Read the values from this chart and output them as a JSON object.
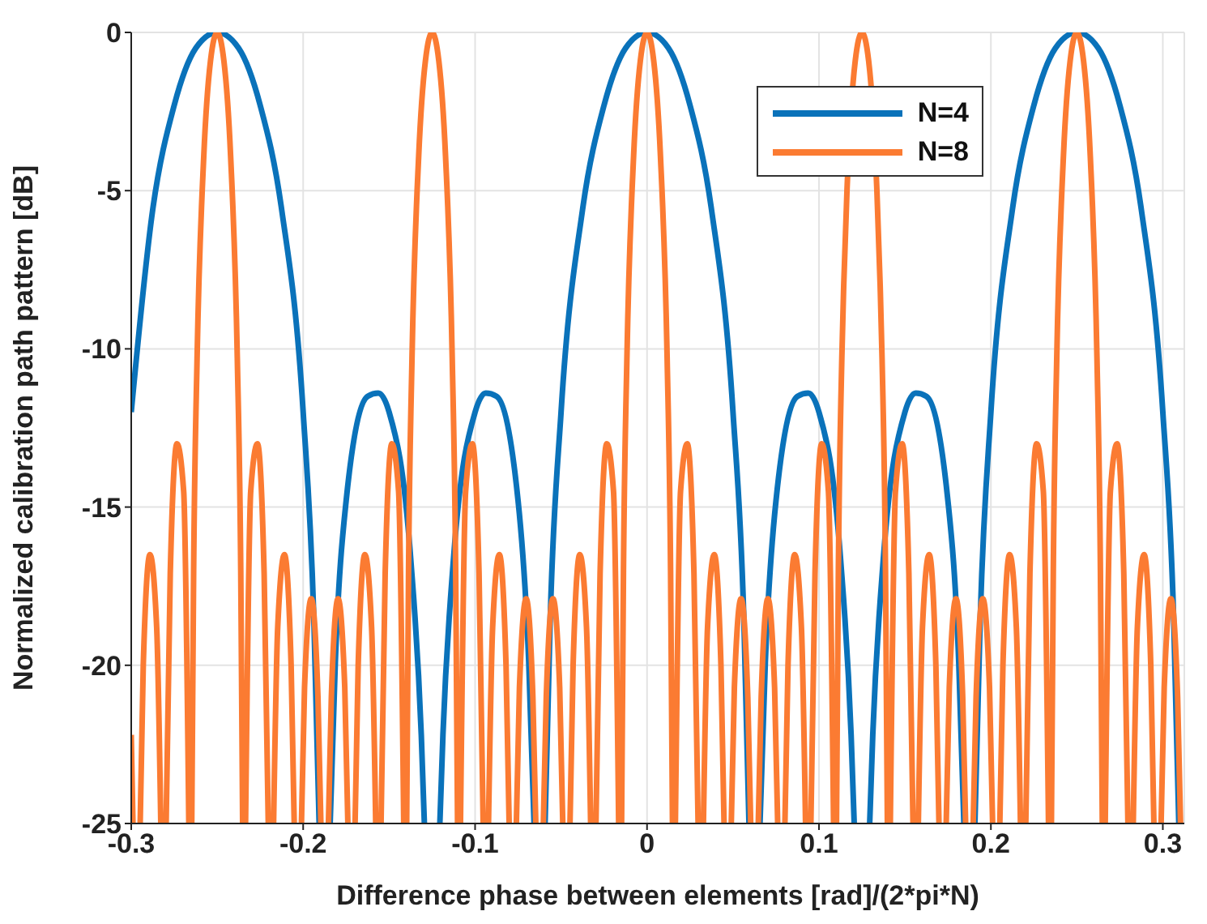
{
  "chart_data": {
    "type": "line",
    "xlabel": "Difference phase between elements [rad]/(2*pi*N)",
    "ylabel": "Normalized calibration path pattern [dB]",
    "xlim": [
      -0.3,
      0.3125
    ],
    "xticks": [
      -0.3,
      -0.2,
      -0.1,
      0,
      0.1,
      0.2,
      0.3
    ],
    "ylim": [
      -25,
      0
    ],
    "yticks": [
      -25,
      -20,
      -15,
      -10,
      -5,
      0
    ],
    "grid": true,
    "legend": "top right",
    "marker": "none",
    "line_style": "solid",
    "series": [
      {
        "name": "N=4",
        "color": "#0a72ba",
        "x": [
          -0.3,
          -0.2875,
          -0.275,
          -0.2625,
          -0.25,
          -0.2375,
          -0.225,
          -0.2125,
          -0.2,
          -0.1938,
          -0.1907,
          -0.1875,
          -0.1843,
          -0.1813,
          -0.175,
          -0.1625,
          -0.1563,
          -0.15,
          -0.1375,
          -0.1313,
          -0.1295,
          -0.125,
          -0.1205,
          -0.1187,
          -0.1125,
          -0.1,
          -0.0938,
          -0.0875,
          -0.075,
          -0.0688,
          -0.0657,
          -0.0625,
          -0.0593,
          -0.0563,
          -0.05,
          -0.0375,
          -0.025,
          -0.0125,
          0,
          0.0125,
          0.025,
          0.0375,
          0.05,
          0.0563,
          0.0593,
          0.0625,
          0.0657,
          0.0688,
          0.075,
          0.0875,
          0.0938,
          0.1,
          0.1125,
          0.1187,
          0.1205,
          0.125,
          0.1295,
          0.1313,
          0.1375,
          0.15,
          0.1563,
          0.1625,
          0.175,
          0.1813,
          0.1843,
          0.1875,
          0.1907,
          0.1938,
          0.2,
          0.2125,
          0.225,
          0.2375,
          0.25,
          0.2625,
          0.275,
          0.2875,
          0.3,
          0.3063,
          0.3093
        ],
        "values": [
          -12,
          -5.6,
          -2.3,
          -0.5,
          0,
          -0.5,
          -2.3,
          -5.6,
          -12,
          -18.5,
          -25,
          null,
          -25,
          -19.9,
          -14.8,
          -11.5,
          -11.4,
          -12,
          -16.6,
          -22.2,
          -25,
          null,
          -25,
          -22.2,
          -16.6,
          -12,
          -11.4,
          -11.5,
          -14.8,
          -19.9,
          -25,
          null,
          -25,
          -18.5,
          -12,
          -5.6,
          -2.3,
          -0.5,
          0,
          -0.5,
          -2.3,
          -5.6,
          -12,
          -18.5,
          -25,
          null,
          -25,
          -19.9,
          -14.8,
          -11.5,
          -11.4,
          -12,
          -16.6,
          -22.2,
          -25,
          null,
          -25,
          -22.2,
          -16.6,
          -12,
          -11.4,
          -11.5,
          -14.8,
          -19.9,
          -25,
          null,
          -25,
          -18.5,
          -12,
          -5.6,
          -2.3,
          -0.5,
          0,
          -0.5,
          -2.3,
          -5.6,
          -12,
          -18.5,
          -25
        ]
      },
      {
        "name": "N=8",
        "color": "#fb7b32",
        "x": [
          -0.3,
          -0.299,
          -0.2969,
          -0.2948,
          -0.293,
          -0.2891,
          -0.2852,
          -0.2828,
          -0.2812,
          -0.2797,
          -0.2773,
          -0.2734,
          -0.2695,
          -0.2665,
          -0.2656,
          -0.2648,
          -0.2637,
          -0.2617,
          -0.2578,
          -0.2539,
          -0.25,
          -0.2461,
          -0.2422,
          -0.2383,
          -0.2363,
          -0.2352,
          -0.2344,
          -0.2335,
          -0.2305,
          -0.2266,
          -0.2227,
          -0.2203,
          -0.2188,
          -0.2172,
          -0.2148,
          -0.2109,
          -0.207,
          -0.2052,
          -0.2031,
          -0.201,
          -0.1992,
          -0.1953,
          -0.1914,
          -0.1897,
          -0.1875,
          -0.1853,
          -0.1836,
          -0.1797,
          -0.1758,
          -0.174,
          -0.1719,
          -0.1698,
          -0.168,
          -0.1641,
          -0.1602,
          -0.1578,
          -0.1562,
          -0.1547,
          -0.1523,
          -0.1484,
          -0.1445,
          -0.1415,
          -0.1406,
          -0.1398,
          -0.1387,
          -0.1367,
          -0.1328,
          -0.1289,
          -0.125,
          -0.1211,
          -0.1172,
          -0.1133,
          -0.1113,
          -0.1102,
          -0.1094,
          -0.1085,
          -0.1055,
          -0.1016,
          -0.0977,
          -0.0953,
          -0.0938,
          -0.0922,
          -0.0898,
          -0.0859,
          -0.082,
          -0.0802,
          -0.0781,
          -0.076,
          -0.0742,
          -0.0703,
          -0.0664,
          -0.0647,
          -0.0625,
          -0.0603,
          -0.0586,
          -0.0547,
          -0.0508,
          -0.049,
          -0.0469,
          -0.0448,
          -0.043,
          -0.0391,
          -0.0352,
          -0.0328,
          -0.0312,
          -0.0297,
          -0.0273,
          -0.0234,
          -0.0195,
          -0.0165,
          -0.0156,
          -0.0148,
          -0.0137,
          -0.0117,
          -0.0078,
          -0.0039,
          0,
          0.0039,
          0.0078,
          0.0117,
          0.0137,
          0.0148,
          0.0156,
          0.0165,
          0.0195,
          0.0234,
          0.0273,
          0.0297,
          0.0312,
          0.0328,
          0.0352,
          0.0391,
          0.043,
          0.0448,
          0.0469,
          0.049,
          0.0508,
          0.0547,
          0.0586,
          0.0603,
          0.0625,
          0.0647,
          0.0664,
          0.0703,
          0.0742,
          0.076,
          0.0781,
          0.0802,
          0.082,
          0.0859,
          0.0898,
          0.0922,
          0.0938,
          0.0953,
          0.0977,
          0.1016,
          0.1055,
          0.1085,
          0.1094,
          0.1102,
          0.1113,
          0.1133,
          0.1144,
          0.1163,
          0.1211,
          0.125,
          0.1289,
          0.1337,
          0.1356,
          0.1367,
          0.1387,
          0.1398,
          0.1406,
          0.1415,
          0.1445,
          0.1484,
          0.1523,
          0.1547,
          0.1562,
          0.1578,
          0.1602,
          0.1641,
          0.168,
          0.1698,
          0.1719,
          0.174,
          0.1758,
          0.1797,
          0.1836,
          0.1853,
          0.1875,
          0.1897,
          0.1914,
          0.1953,
          0.1992,
          0.201,
          0.2031,
          0.2052,
          0.207,
          0.2109,
          0.2148,
          0.2172,
          0.2188,
          0.2203,
          0.2227,
          0.2266,
          0.2305,
          0.2335,
          0.2344,
          0.2352,
          0.2363,
          0.2383,
          0.2422,
          0.2461,
          0.25,
          0.2539,
          0.2578,
          0.2617,
          0.2637,
          0.2648,
          0.2656,
          0.2665,
          0.2695,
          0.2734,
          0.2773,
          0.2797,
          0.2812,
          0.2828,
          0.2852,
          0.2891,
          0.293,
          0.2948,
          0.2969,
          0.299,
          0.3008,
          0.3047,
          0.3086,
          0.3103
        ],
        "values": [
          -22.2,
          -25,
          null,
          -25,
          -20,
          -16.5,
          -18.8,
          -25,
          null,
          -25,
          -17.1,
          -13,
          -14.5,
          -25,
          null,
          -25,
          -17,
          -10.3,
          -3.9,
          -0.9,
          0,
          -0.9,
          -3.9,
          -10.3,
          -17,
          -25,
          null,
          -25,
          -14.5,
          -13,
          -17.1,
          -25,
          null,
          -25,
          -18.8,
          -16.5,
          -20,
          -25,
          null,
          -25,
          -20.7,
          -17.9,
          -21,
          -25,
          null,
          -25,
          -21,
          -17.9,
          -20.7,
          -25,
          null,
          -25,
          -20,
          -16.5,
          -18.8,
          -25,
          null,
          -25,
          -17.1,
          -13,
          -14.5,
          -25,
          null,
          -25,
          -17,
          -10.3,
          -3.9,
          -0.9,
          0,
          -0.9,
          -3.9,
          -10.3,
          -17,
          -25,
          null,
          -25,
          -14.5,
          -13,
          -17.1,
          -25,
          null,
          -25,
          -18.8,
          -16.5,
          -20,
          -25,
          null,
          -25,
          -20.7,
          -17.9,
          -21,
          -25,
          null,
          -25,
          -21,
          -17.9,
          -20.7,
          -25,
          null,
          -25,
          -20,
          -16.5,
          -18.8,
          -25,
          null,
          -25,
          -17.1,
          -13,
          -14.5,
          -25,
          null,
          -25,
          -17,
          -10.3,
          -3.9,
          -0.9,
          0,
          -0.9,
          -3.9,
          -10.3,
          -17,
          -25,
          null,
          -25,
          -14.5,
          -13,
          -17.1,
          -25,
          null,
          -25,
          -18.8,
          -16.5,
          -20,
          -25,
          null,
          -25,
          -20.7,
          -17.9,
          -21,
          -25,
          null,
          -25,
          -21,
          -17.9,
          -20.7,
          -25,
          null,
          -25,
          -20,
          -16.5,
          -18.8,
          -25,
          null,
          -25,
          -17.1,
          -13,
          -14.5,
          -25,
          null,
          -25,
          -17,
          -10.3,
          -8,
          -5,
          -0.9,
          0,
          -0.9,
          -5,
          -8,
          -10.3,
          -17,
          -25,
          null,
          -25,
          -14.5,
          -13,
          -17.1,
          -25,
          null,
          -25,
          -18.8,
          -16.5,
          -20,
          -25,
          null,
          -25,
          -20.7,
          -17.9,
          -21,
          -25,
          null,
          -25,
          -21,
          -17.9,
          -20.7,
          -25,
          null,
          -25,
          -20,
          -16.5,
          -18.8,
          -25,
          null,
          -25,
          -17.1,
          -13,
          -14.5,
          -25,
          null,
          -25,
          -17,
          -10.3,
          -3.9,
          -0.9,
          0,
          -0.9,
          -3.9,
          -10.3,
          -17,
          -25,
          null,
          -25,
          -14.5,
          -13,
          -17.1,
          -25,
          null,
          -25,
          -18.8,
          -16.5,
          -20,
          -25,
          null,
          -25,
          -20.7,
          -17.9,
          -21,
          -25
        ]
      }
    ]
  }
}
